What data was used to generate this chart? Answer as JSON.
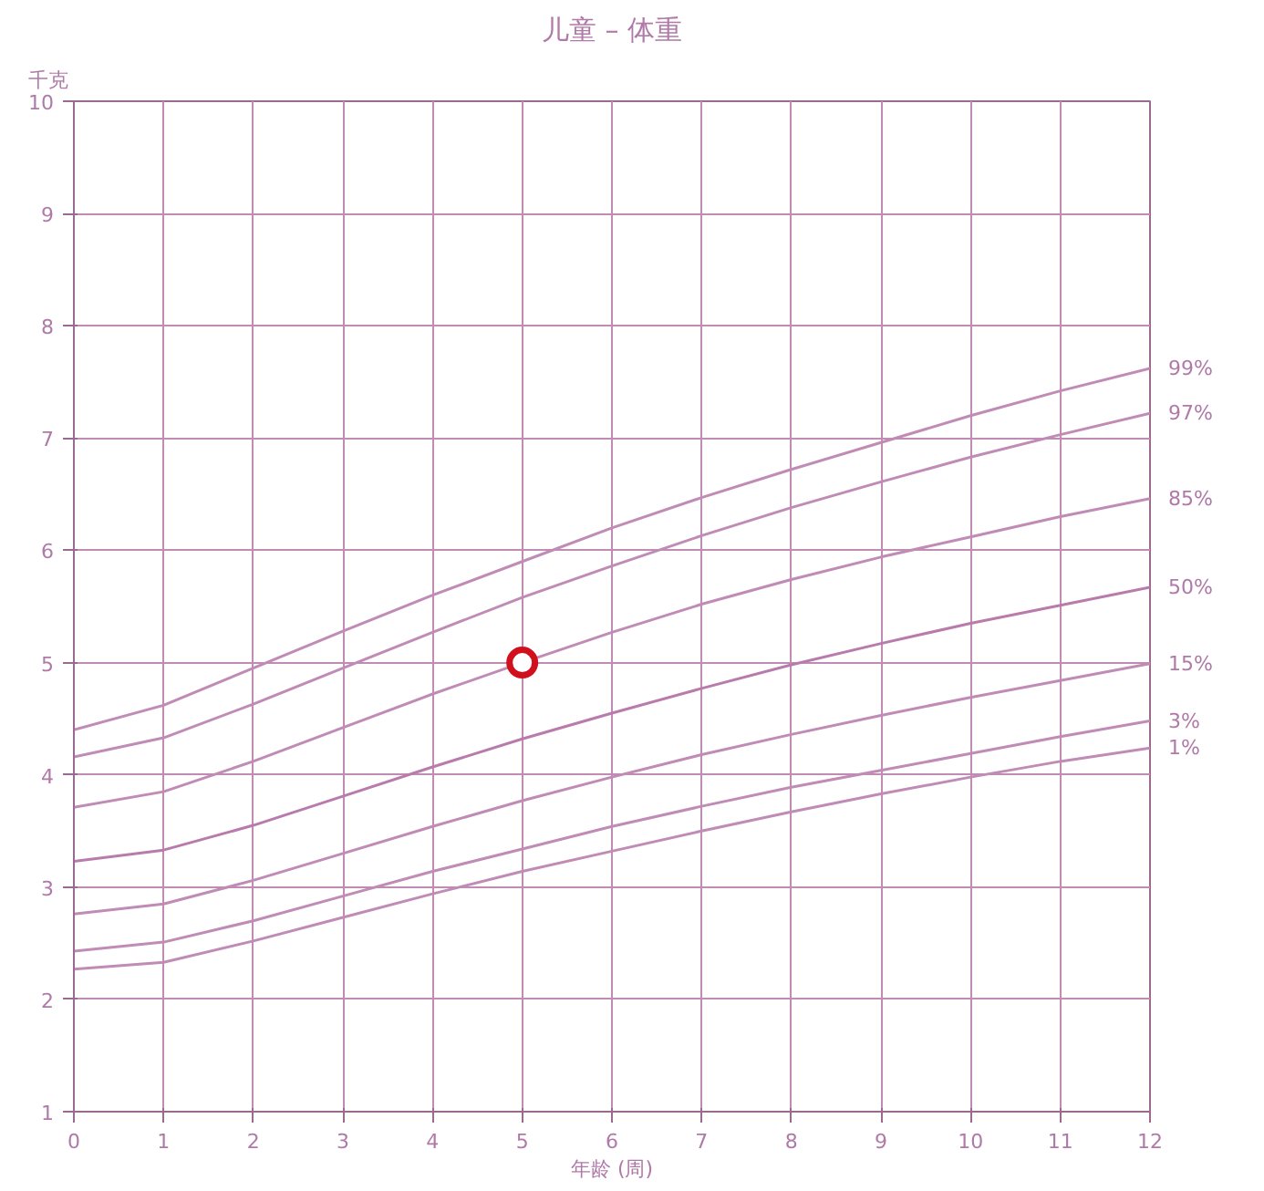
{
  "chart_data": {
    "type": "line",
    "title": "儿童 – 体重",
    "xlabel": "年龄 (周)",
    "ylabel": "千克",
    "x": [
      0,
      1,
      2,
      3,
      4,
      5,
      6,
      7,
      8,
      9,
      10,
      11,
      12
    ],
    "xlim": [
      0,
      12
    ],
    "xticks": [
      0,
      1,
      2,
      3,
      4,
      5,
      6,
      7,
      8,
      9,
      10,
      11,
      12
    ],
    "ylim": [
      1,
      10
    ],
    "yticks": [
      1,
      2,
      3,
      4,
      5,
      6,
      7,
      8,
      9,
      10
    ],
    "grid": true,
    "legend": false,
    "marker": "none",
    "line_style": "solid",
    "series": [
      {
        "name": "99%",
        "color": "#c08bb5",
        "values": [
          4.4,
          4.62,
          4.95,
          5.28,
          5.6,
          5.9,
          6.2,
          6.47,
          6.72,
          6.96,
          7.2,
          7.42,
          7.62
        ]
      },
      {
        "name": "97%",
        "color": "#c08bb5",
        "values": [
          4.16,
          4.33,
          4.63,
          4.95,
          5.27,
          5.58,
          5.86,
          6.13,
          6.38,
          6.61,
          6.83,
          7.03,
          7.22
        ]
      },
      {
        "name": "85%",
        "color": "#c08bb5",
        "values": [
          3.71,
          3.85,
          4.12,
          4.42,
          4.72,
          5.0,
          5.27,
          5.52,
          5.74,
          5.94,
          6.12,
          6.3,
          6.46
        ]
      },
      {
        "name": "50%",
        "color": "#b97aac",
        "values": [
          3.23,
          3.33,
          3.55,
          3.81,
          4.07,
          4.32,
          4.55,
          4.77,
          4.98,
          5.17,
          5.35,
          5.51,
          5.67
        ]
      },
      {
        "name": "15%",
        "color": "#c08bb5",
        "values": [
          2.76,
          2.85,
          3.06,
          3.3,
          3.54,
          3.77,
          3.98,
          4.18,
          4.36,
          4.53,
          4.69,
          4.84,
          4.99
        ]
      },
      {
        "name": "3%",
        "color": "#c08bb5",
        "values": [
          2.43,
          2.51,
          2.7,
          2.92,
          3.14,
          3.34,
          3.54,
          3.72,
          3.89,
          4.04,
          4.19,
          4.34,
          4.48
        ]
      },
      {
        "name": "1%",
        "color": "#c08bb5",
        "values": [
          2.27,
          2.33,
          2.52,
          2.73,
          2.94,
          3.14,
          3.32,
          3.5,
          3.67,
          3.83,
          3.98,
          4.12,
          4.24
        ]
      },
      {
        "type": "scatter",
        "marker": "circle",
        "x": [
          5
        ],
        "color": "#d0101c",
        "values": [
          5.0
        ]
      }
    ]
  }
}
